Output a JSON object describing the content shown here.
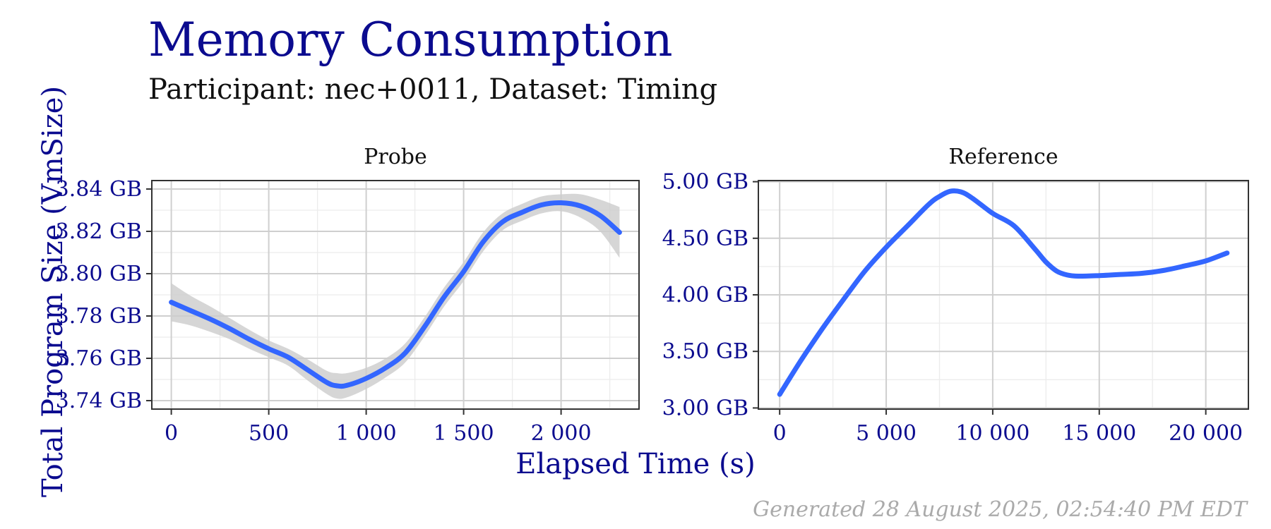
{
  "page": {
    "footer": "Generated 28 August 2025, 02:54:40 PM EDT"
  },
  "colors": {
    "title": "#0b0b8f",
    "line": "#3366ff",
    "ribbon": "#cccccc",
    "grid_major": "#cfcfcf",
    "grid_minor": "#ececec",
    "footer": "#aaaaaa"
  },
  "chart_data": {
    "type": "line",
    "title": "Memory Consumption",
    "subtitle": "Participant: nec+0011, Dataset: Timing",
    "xlabel": "Elapsed Time (s)",
    "ylabel": "Total Program Size (VmSize)",
    "grid": true,
    "panels": [
      {
        "name": "Probe",
        "xlim": [
          -100,
          2400
        ],
        "ylim": [
          3.736,
          3.844
        ],
        "x_ticks": [
          0,
          500,
          1000,
          1500,
          2000
        ],
        "x_tick_labels": [
          "0",
          "500",
          "1 000",
          "1 500",
          "2 000"
        ],
        "y_ticks": [
          3.74,
          3.76,
          3.78,
          3.8,
          3.82,
          3.84
        ],
        "y_tick_labels": [
          "3.74 GB",
          "3.76 GB",
          "3.78 GB",
          "3.80 GB",
          "3.82 GB",
          "3.84 GB"
        ],
        "series": [
          {
            "x": [
              0,
              100,
              200,
              300,
              400,
              500,
              600,
              700,
              800,
              850,
              900,
              1000,
              1100,
              1200,
              1300,
              1400,
              1500,
              1600,
              1700,
              1800,
              1900,
              2000,
              2100,
              2200,
              2300
            ],
            "y": [
              3.7865,
              3.7825,
              3.7785,
              3.774,
              3.769,
              3.7645,
              3.7605,
              3.7545,
              3.7485,
              3.747,
              3.7472,
              3.7505,
              3.7555,
              3.7625,
              3.775,
              3.789,
              3.801,
              3.815,
              3.8245,
              3.829,
              3.8325,
              3.8335,
              3.832,
              3.8275,
              3.8195
            ],
            "ci_low": [
              3.7775,
              3.7755,
              3.7725,
              3.769,
              3.7645,
              3.7605,
              3.7565,
              3.7495,
              3.743,
              3.741,
              3.7415,
              3.7455,
              3.751,
              3.758,
              3.7705,
              3.7845,
              3.7965,
              3.8105,
              3.8205,
              3.825,
              3.8285,
              3.8295,
              3.8265,
              3.82,
              3.8075
            ],
            "ci_high": [
              3.7955,
              3.7895,
              3.7845,
              3.779,
              3.7735,
              3.7685,
              3.7645,
              3.7595,
              3.754,
              3.753,
              3.753,
              3.7555,
              3.76,
              3.767,
              3.7795,
              3.7935,
              3.8055,
              3.8195,
              3.8285,
              3.833,
              3.8365,
              3.8375,
              3.8375,
              3.835,
              3.8315
            ]
          }
        ]
      },
      {
        "name": "Reference",
        "xlim": [
          -1000,
          22000
        ],
        "ylim": [
          2.99,
          5.01
        ],
        "x_ticks": [
          0,
          5000,
          10000,
          15000,
          20000
        ],
        "x_tick_labels": [
          "0",
          "5 000",
          "10 000",
          "15 000",
          "20 000"
        ],
        "y_ticks": [
          3.0,
          3.5,
          4.0,
          4.5,
          5.0
        ],
        "y_tick_labels": [
          "3.00 GB",
          "3.50 GB",
          "4.00 GB",
          "4.50 GB",
          "5.00 GB"
        ],
        "series": [
          {
            "x": [
              0,
              1000,
              2000,
              3000,
              4000,
              5000,
              6000,
              7000,
              7500,
              8000,
              8500,
              9000,
              10000,
              11000,
              12000,
              12500,
              13000,
              13500,
              14000,
              15000,
              16000,
              17000,
              18000,
              19000,
              20000,
              21000
            ],
            "y": [
              3.12,
              3.42,
              3.7,
              3.96,
              4.21,
              4.42,
              4.61,
              4.8,
              4.87,
              4.915,
              4.91,
              4.86,
              4.72,
              4.61,
              4.4,
              4.29,
              4.21,
              4.175,
              4.165,
              4.17,
              4.18,
              4.19,
              4.215,
              4.255,
              4.3,
              4.37
            ]
          }
        ]
      }
    ]
  }
}
